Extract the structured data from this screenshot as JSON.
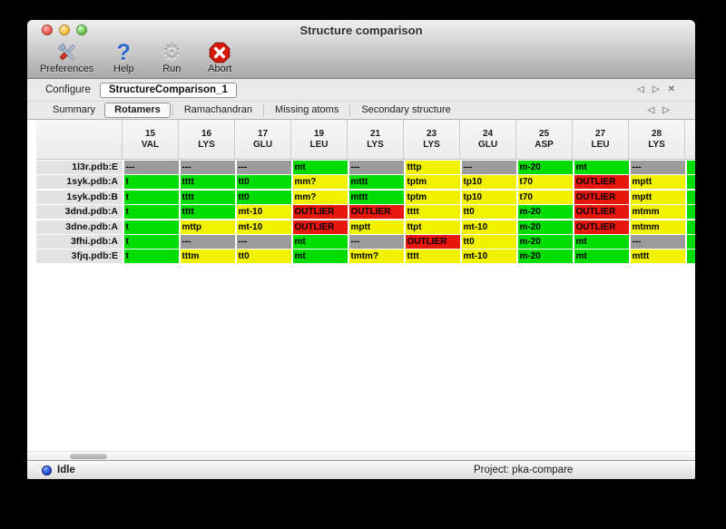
{
  "window": {
    "title": "Structure comparison"
  },
  "toolbar": {
    "preferences": {
      "label": "Preferences"
    },
    "help": {
      "label": "Help"
    },
    "run": {
      "label": "Run"
    },
    "abort": {
      "label": "Abort"
    }
  },
  "icons": {
    "prev": "◁",
    "next": "▷",
    "close": "✕",
    "help": "?",
    "gear": "⚙"
  },
  "configure": {
    "label": "Configure",
    "value": "StructureComparison_1"
  },
  "tabs": [
    "Summary",
    "Rotamers",
    "Ramachandran",
    "Missing atoms",
    "Secondary structure"
  ],
  "active_tab": "Rotamers",
  "colors": {
    "ok": "#00dc00",
    "warn": "#f2f200",
    "out": "#e8170b",
    "na": "#9c9c9c"
  },
  "table": {
    "columns": [
      {
        "num": "15",
        "res": "VAL"
      },
      {
        "num": "16",
        "res": "LYS"
      },
      {
        "num": "17",
        "res": "GLU"
      },
      {
        "num": "19",
        "res": "LEU"
      },
      {
        "num": "21",
        "res": "LYS"
      },
      {
        "num": "23",
        "res": "LYS"
      },
      {
        "num": "24",
        "res": "GLU"
      },
      {
        "num": "25",
        "res": "ASP"
      },
      {
        "num": "27",
        "res": "LEU"
      },
      {
        "num": "28",
        "res": "LYS"
      }
    ],
    "rows": [
      {
        "label": "1l3r.pdb:E",
        "partial": "ok",
        "cells": [
          {
            "t": "---",
            "s": "na"
          },
          {
            "t": "---",
            "s": "na"
          },
          {
            "t": "---",
            "s": "na"
          },
          {
            "t": "mt",
            "s": "ok"
          },
          {
            "t": "---",
            "s": "na"
          },
          {
            "t": "tttp",
            "s": "warn"
          },
          {
            "t": "---",
            "s": "na"
          },
          {
            "t": "m-20",
            "s": "ok"
          },
          {
            "t": "mt",
            "s": "ok"
          },
          {
            "t": "---",
            "s": "na"
          }
        ]
      },
      {
        "label": "1syk.pdb:A",
        "partial": "ok",
        "cells": [
          {
            "t": "t",
            "s": "ok"
          },
          {
            "t": "tttt",
            "s": "ok"
          },
          {
            "t": "tt0",
            "s": "ok"
          },
          {
            "t": "mm?",
            "s": "warn"
          },
          {
            "t": "mttt",
            "s": "ok"
          },
          {
            "t": "tptm",
            "s": "warn"
          },
          {
            "t": "tp10",
            "s": "warn"
          },
          {
            "t": "t70",
            "s": "warn"
          },
          {
            "t": "OUTLIER",
            "s": "out"
          },
          {
            "t": "mptt",
            "s": "warn"
          }
        ]
      },
      {
        "label": "1syk.pdb:B",
        "partial": "ok",
        "cells": [
          {
            "t": "t",
            "s": "ok"
          },
          {
            "t": "tttt",
            "s": "ok"
          },
          {
            "t": "tt0",
            "s": "ok"
          },
          {
            "t": "mm?",
            "s": "warn"
          },
          {
            "t": "mttt",
            "s": "ok"
          },
          {
            "t": "tptm",
            "s": "warn"
          },
          {
            "t": "tp10",
            "s": "warn"
          },
          {
            "t": "t70",
            "s": "warn"
          },
          {
            "t": "OUTLIER",
            "s": "out"
          },
          {
            "t": "mptt",
            "s": "warn"
          }
        ]
      },
      {
        "label": "3dnd.pdb:A",
        "partial": "ok",
        "cells": [
          {
            "t": "t",
            "s": "ok"
          },
          {
            "t": "tttt",
            "s": "ok"
          },
          {
            "t": "mt-10",
            "s": "warn"
          },
          {
            "t": "OUTLIER",
            "s": "out"
          },
          {
            "t": "OUTLIER",
            "s": "out"
          },
          {
            "t": "tttt",
            "s": "warn"
          },
          {
            "t": "tt0",
            "s": "warn"
          },
          {
            "t": "m-20",
            "s": "ok"
          },
          {
            "t": "OUTLIER",
            "s": "out"
          },
          {
            "t": "mtmm",
            "s": "warn"
          }
        ]
      },
      {
        "label": "3dne.pdb:A",
        "partial": "ok",
        "cells": [
          {
            "t": "t",
            "s": "ok"
          },
          {
            "t": "mttp",
            "s": "warn"
          },
          {
            "t": "mt-10",
            "s": "warn"
          },
          {
            "t": "OUTLIER",
            "s": "out"
          },
          {
            "t": "mptt",
            "s": "warn"
          },
          {
            "t": "ttpt",
            "s": "warn"
          },
          {
            "t": "mt-10",
            "s": "warn"
          },
          {
            "t": "m-20",
            "s": "ok"
          },
          {
            "t": "OUTLIER",
            "s": "out"
          },
          {
            "t": "mtmm",
            "s": "warn"
          }
        ]
      },
      {
        "label": "3fhi.pdb:A",
        "partial": "ok",
        "cells": [
          {
            "t": "t",
            "s": "ok"
          },
          {
            "t": "---",
            "s": "na"
          },
          {
            "t": "---",
            "s": "na"
          },
          {
            "t": "mt",
            "s": "ok"
          },
          {
            "t": "---",
            "s": "na"
          },
          {
            "t": "OUTLIER",
            "s": "out"
          },
          {
            "t": "tt0",
            "s": "warn"
          },
          {
            "t": "m-20",
            "s": "ok"
          },
          {
            "t": "mt",
            "s": "ok"
          },
          {
            "t": "---",
            "s": "na"
          }
        ]
      },
      {
        "label": "3fjq.pdb:E",
        "partial": "ok",
        "cells": [
          {
            "t": "t",
            "s": "ok"
          },
          {
            "t": "tttm",
            "s": "warn"
          },
          {
            "t": "tt0",
            "s": "warn"
          },
          {
            "t": "mt",
            "s": "ok"
          },
          {
            "t": "tmtm?",
            "s": "warn"
          },
          {
            "t": "tttt",
            "s": "warn"
          },
          {
            "t": "mt-10",
            "s": "warn"
          },
          {
            "t": "m-20",
            "s": "ok"
          },
          {
            "t": "mt",
            "s": "ok"
          },
          {
            "t": "mttt",
            "s": "warn"
          }
        ]
      }
    ]
  },
  "statusbar": {
    "state": "Idle",
    "project": "Project: pka-compare"
  }
}
